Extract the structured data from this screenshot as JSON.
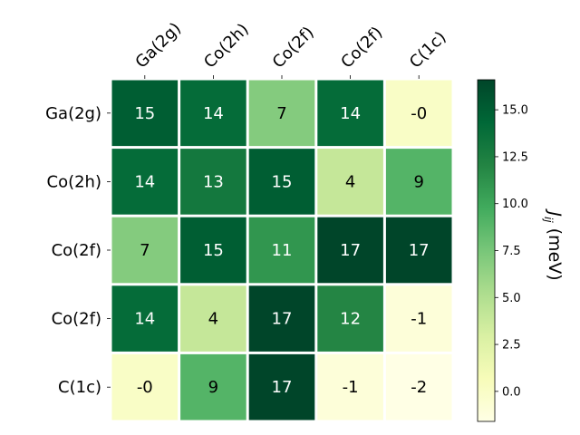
{
  "chart_data": {
    "type": "heatmap",
    "title": "",
    "x_categories": [
      "Ga(2g)",
      "Co(2h)",
      "Co(2f)",
      "Co(2f)",
      "C(1c)"
    ],
    "y_categories": [
      "Ga(2g)",
      "Co(2h)",
      "Co(2f)",
      "Co(2f)",
      "C(1c)"
    ],
    "x_axis_position": "top",
    "x_tick_rotation": 45,
    "values": [
      [
        15,
        14,
        7,
        14,
        0
      ],
      [
        14,
        13,
        15,
        4,
        9
      ],
      [
        7,
        15,
        11,
        17,
        17
      ],
      [
        14,
        4,
        17,
        12,
        -1
      ],
      [
        0,
        9,
        17,
        -1,
        -2
      ]
    ],
    "cell_labels": [
      [
        "15",
        "14",
        "7",
        "14",
        "-0"
      ],
      [
        "14",
        "13",
        "15",
        "4",
        "9"
      ],
      [
        "7",
        "15",
        "11",
        "17",
        "17"
      ],
      [
        "14",
        "4",
        "17",
        "12",
        "-1"
      ],
      [
        "-0",
        "9",
        "17",
        "-1",
        "-2"
      ]
    ],
    "colormap": "YlGn",
    "colorbar": {
      "label": "J_ij (meV)",
      "label_main": "J",
      "label_sub": "ij",
      "label_units": " (meV)",
      "min": -1.6,
      "max": 16.6,
      "ticks": [
        0.0,
        2.5,
        5.0,
        7.5,
        10.0,
        12.5,
        15.0
      ],
      "tick_labels": [
        "0.0",
        "2.5",
        "5.0",
        "7.5",
        "10.0",
        "12.5",
        "15.0"
      ]
    },
    "grid": false
  }
}
